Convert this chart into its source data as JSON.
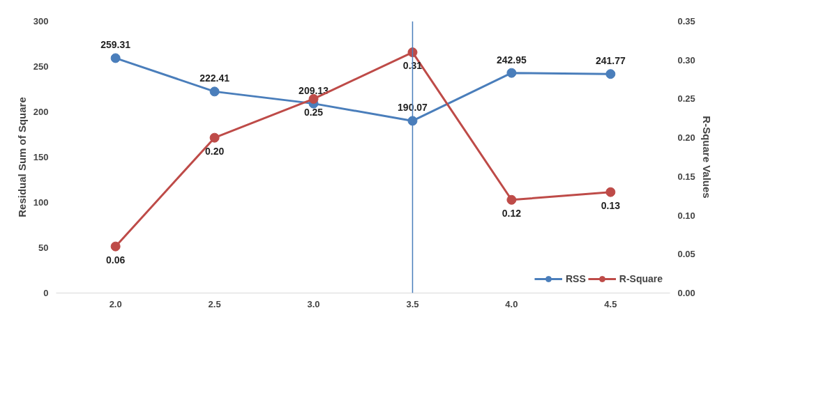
{
  "chart_data": {
    "type": "line",
    "categories": [
      "2.0",
      "2.5",
      "3.0",
      "3.5",
      "4.0",
      "4.5"
    ],
    "ylabel": "Residual Sum of Square",
    "y2label": "R-Square Values",
    "ylim": [
      0,
      300
    ],
    "yticks": [
      0,
      50,
      100,
      150,
      200,
      250,
      300
    ],
    "y2lim": [
      0,
      0.35
    ],
    "y2ticks": [
      {
        "value": 0,
        "label": "0.00"
      },
      {
        "value": 0.05,
        "label": "0.05"
      },
      {
        "value": 0.1,
        "label": "0.10"
      },
      {
        "value": 0.15,
        "label": "0.15"
      },
      {
        "value": 0.2,
        "label": "0.20"
      },
      {
        "value": 0.25,
        "label": "0.25"
      },
      {
        "value": 0.3,
        "label": "0.30"
      },
      {
        "value": 0.35,
        "label": "0.35"
      }
    ],
    "series": [
      {
        "name": "RSS",
        "color": "#4a7ebb",
        "values": [
          259.31,
          222.41,
          209.13,
          190.07,
          242.95,
          241.77
        ],
        "value_labels": [
          "259.31",
          "222.41",
          "209.13",
          "190.07",
          "242.95",
          "241.77"
        ]
      },
      {
        "name": "R-Square",
        "color": "#be4b48",
        "axis": "y2",
        "values": [
          0.06,
          0.2,
          0.25,
          0.31,
          0.12,
          0.13
        ],
        "value_labels": [
          "0.06",
          "0.20",
          "0.25",
          "0.31",
          "0.12",
          "0.13"
        ]
      }
    ],
    "ref_lines": [
      {
        "axis": "x",
        "value": "3.5",
        "color": "#4a7ebb"
      }
    ],
    "marker": "circle",
    "line_style": "solid",
    "legend": "bottom right",
    "grid": false
  }
}
